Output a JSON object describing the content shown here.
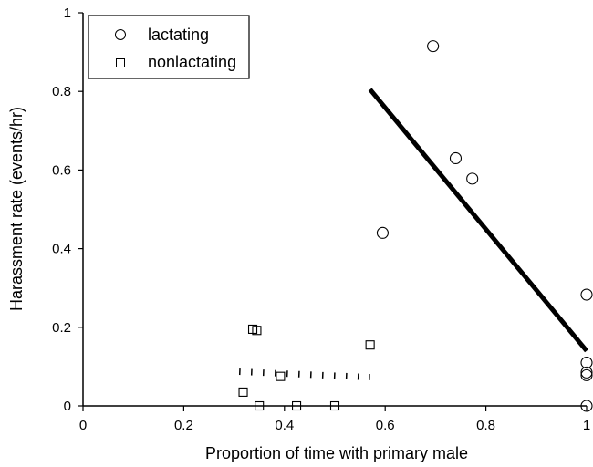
{
  "chart_data": {
    "type": "scatter",
    "title": "",
    "xlabel": "Proportion of time with primary male",
    "ylabel": "Harassment rate (events/hr)",
    "xlim": [
      0,
      1
    ],
    "ylim": [
      0,
      1
    ],
    "x_ticks": [
      0,
      0.2,
      0.4,
      0.6,
      0.8,
      1
    ],
    "x_tick_labels": [
      "0",
      "0.2",
      "0.4",
      "0.6",
      "0.8",
      "1"
    ],
    "y_ticks": [
      0,
      0.2,
      0.4,
      0.6,
      0.8,
      1
    ],
    "y_tick_labels": [
      "0",
      "0.2",
      "0.4",
      "0.6",
      "0.8",
      "1"
    ],
    "legend_position": "top-left",
    "series": [
      {
        "name": "lactating",
        "marker": "circle",
        "points": [
          {
            "x": 0.595,
            "y": 0.44
          },
          {
            "x": 0.695,
            "y": 0.915
          },
          {
            "x": 0.74,
            "y": 0.63
          },
          {
            "x": 0.773,
            "y": 0.578
          },
          {
            "x": 1.0,
            "y": 0.283
          },
          {
            "x": 1.0,
            "y": 0.11
          },
          {
            "x": 1.0,
            "y": 0.085
          },
          {
            "x": 1.0,
            "y": 0.078
          },
          {
            "x": 1.0,
            "y": 0.0
          }
        ]
      },
      {
        "name": "nonlactating",
        "marker": "square",
        "points": [
          {
            "x": 0.318,
            "y": 0.035
          },
          {
            "x": 0.337,
            "y": 0.195
          },
          {
            "x": 0.345,
            "y": 0.192
          },
          {
            "x": 0.35,
            "y": 0.0
          },
          {
            "x": 0.392,
            "y": 0.075
          },
          {
            "x": 0.424,
            "y": 0.0
          },
          {
            "x": 0.5,
            "y": 0.0
          },
          {
            "x": 0.57,
            "y": 0.155
          }
        ]
      }
    ],
    "fit_lines": [
      {
        "series": "lactating",
        "style": "solid",
        "x": [
          0.57,
          1.0
        ],
        "y": [
          0.805,
          0.14
        ]
      },
      {
        "series": "nonlactating",
        "style": "dotted",
        "x": [
          0.31,
          0.57
        ],
        "y": [
          0.087,
          0.073
        ]
      }
    ]
  }
}
